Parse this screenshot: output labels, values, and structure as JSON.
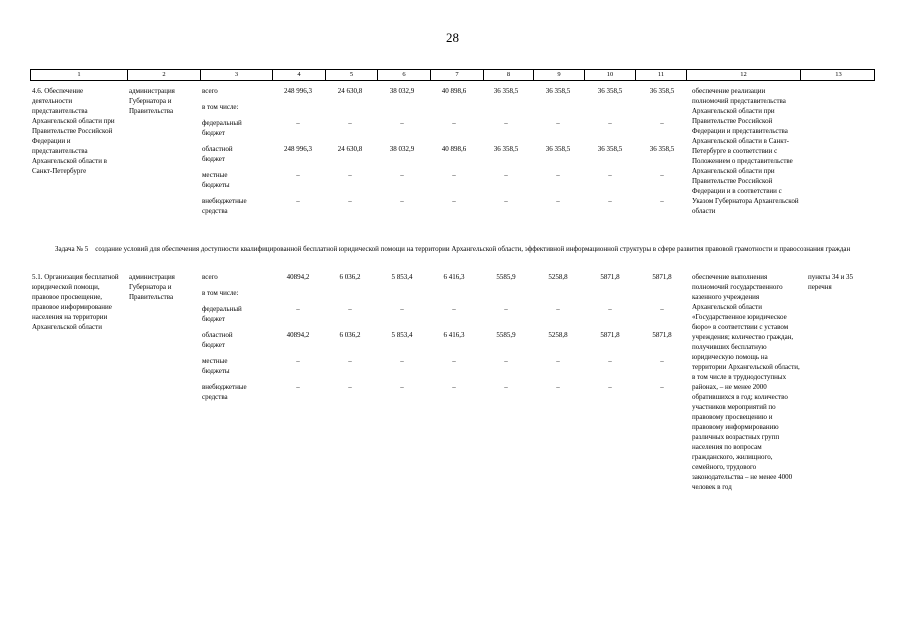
{
  "page": {
    "number": "28"
  },
  "table": {
    "column_numbers": [
      "1",
      "2",
      "3",
      "4",
      "5",
      "6",
      "7",
      "8",
      "9",
      "10",
      "11",
      "12",
      "13"
    ],
    "task_heading": "Задача № 5    создание условий для обеспечения доступности квалифицированной бесплатной юридической помощи на территории Архангельской области, эффективной информационной структуры в сфере развития правовой грамотности и правосознания граждан",
    "sections": [
      {
        "activity": "4.6. Обеспечение деятельности представительства Архангельской области при Правительстве Российской Федерации и представительства Архангельской области в Санкт-Петербурге",
        "executor": "администрация Губернатора и Правительства",
        "budget": [
          {
            "label": "всего",
            "values": [
              "248 996,3",
              "24 630,8",
              "38 032,9",
              "40 898,6",
              "36 358,5",
              "36 358,5",
              "36 358,5",
              "36 358,5"
            ]
          },
          {
            "label": "в том числе:",
            "values": []
          },
          {
            "label": "федеральный бюджет",
            "values": [
              "–",
              "–",
              "–",
              "–",
              "–",
              "–",
              "–",
              "–"
            ]
          },
          {
            "label": "областной бюджет",
            "values": [
              "248 996,3",
              "24 630,8",
              "38 032,9",
              "40 898,6",
              "36 358,5",
              "36 358,5",
              "36 358,5",
              "36 358,5"
            ]
          },
          {
            "label": "местные бюджеты",
            "values": [
              "–",
              "–",
              "–",
              "–",
              "–",
              "–",
              "–",
              "–"
            ]
          },
          {
            "label": "внебюджетные средства",
            "values": [
              "–",
              "–",
              "–",
              "–",
              "–",
              "–",
              "–",
              "–"
            ]
          }
        ],
        "expected_results": "обеспечение реализации полномочий представительства Архангельской области при Правительстве Российской Федерации и представительства Архангельской области в Санкт-Петербурге в соответствии с Положением о представительстве Архангельской области при Правительстве Российской Федерации и в соответствии с Указом Губернатора Архангельской области",
        "note": ""
      },
      {
        "activity": "5.1. Организация бесплатной юридической помощи, правовое просвещение, правовое информирование населения на территории Архангельской области",
        "executor": "администрация Губернатора и Правительства",
        "budget": [
          {
            "label": "всего",
            "values": [
              "40894,2",
              "6 036,2",
              "5 853,4",
              "6 416,3",
              "5585,9",
              "5258,8",
              "5871,8",
              "5871,8"
            ]
          },
          {
            "label": "в том числе:",
            "values": []
          },
          {
            "label": "федеральный бюджет",
            "values": [
              "–",
              "–",
              "–",
              "–",
              "–",
              "–",
              "–",
              "–"
            ]
          },
          {
            "label": "областной бюджет",
            "values": [
              "40894,2",
              "6 036,2",
              "5 853,4",
              "6 416,3",
              "5585,9",
              "5258,8",
              "5871,8",
              "5871,8"
            ]
          },
          {
            "label": "местные бюджеты",
            "values": [
              "–",
              "–",
              "–",
              "–",
              "–",
              "–",
              "–",
              "–"
            ]
          },
          {
            "label": "внебюджетные средства",
            "values": [
              "–",
              "–",
              "–",
              "–",
              "–",
              "–",
              "–",
              "–"
            ]
          }
        ],
        "expected_results": "обеспечение выполнения полномочий государственного казенного учреждения Архангельской области «Государственное юридическое бюро» в соответствии с уставом учреждения; количество граждан, получивших бесплатную юридическую помощь на территории Архангельской области, в том числе в труднодоступных районах, – не менее 2000 обратившихся в год; количество участников мероприятий по правовому просвещению и правовому информированию различных возрастных групп населения по вопросам гражданского, жилищного, семейного, трудового законодательства – не менее 4000 человек в год",
        "note": "пункты 34 и 35 перечня"
      }
    ]
  }
}
